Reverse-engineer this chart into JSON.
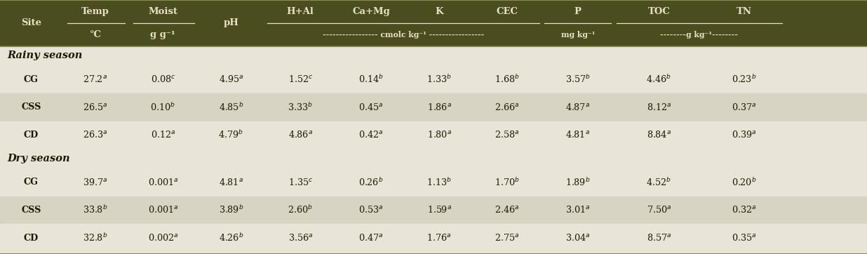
{
  "header_bg": "#4a4e1e",
  "header_fg": "#e8e0c8",
  "row_bg_light": "#e8e4d8",
  "row_bg_medium": "#d8d4c4",
  "section_fg": "#1a1a00",
  "data_fg": "#1a1a00",
  "border_color": "#8a8a50",
  "sections": [
    {
      "name": "Rainy season",
      "rows": [
        [
          "CG",
          "27.2",
          "a",
          "0.08",
          "c",
          "4.95",
          "a",
          "1.52",
          "c",
          "0.14",
          "b",
          "1.33",
          "b",
          "1.68",
          "b",
          "3.57",
          "b",
          "4.46",
          "b",
          "0.23",
          "b"
        ],
        [
          "CSS",
          "26.5",
          "a",
          "0.10",
          "b",
          "4.85",
          "b",
          "3.33",
          "b",
          "0.45",
          "a",
          "1.86",
          "a",
          "2.66",
          "a",
          "4.87",
          "a",
          "8.12",
          "a",
          "0.37",
          "a"
        ],
        [
          "CD",
          "26.3",
          "a",
          "0.12",
          "a",
          "4.79",
          "b",
          "4.86",
          "a",
          "0.42",
          "a",
          "1.80",
          "a",
          "2.58",
          "a",
          "4.81",
          "a",
          "8.84",
          "a",
          "0.39",
          "a"
        ]
      ]
    },
    {
      "name": "Dry season",
      "rows": [
        [
          "CG",
          "39.7",
          "a",
          "0.001",
          "a",
          "4.81",
          "a",
          "1.35",
          "c",
          "0.26",
          "b",
          "1.13",
          "b",
          "1.70",
          "b",
          "1.89",
          "b",
          "4.52",
          "b",
          "0.20",
          "b"
        ],
        [
          "CSS",
          "33.8",
          "b",
          "0.001",
          "a",
          "3.89",
          "b",
          "2.60",
          "b",
          "0.53",
          "a",
          "1.59",
          "a",
          "2.46",
          "a",
          "3.01",
          "a",
          "7.50",
          "a",
          "0.32",
          "a"
        ],
        [
          "CD",
          "32.8",
          "b",
          "0.002",
          "a",
          "4.26",
          "b",
          "3.56",
          "a",
          "0.47",
          "a",
          "1.76",
          "a",
          "2.75",
          "a",
          "3.04",
          "a",
          "8.57",
          "a",
          "0.35",
          "a"
        ]
      ]
    }
  ],
  "figsize": [
    12.36,
    3.62
  ],
  "dpi": 100
}
